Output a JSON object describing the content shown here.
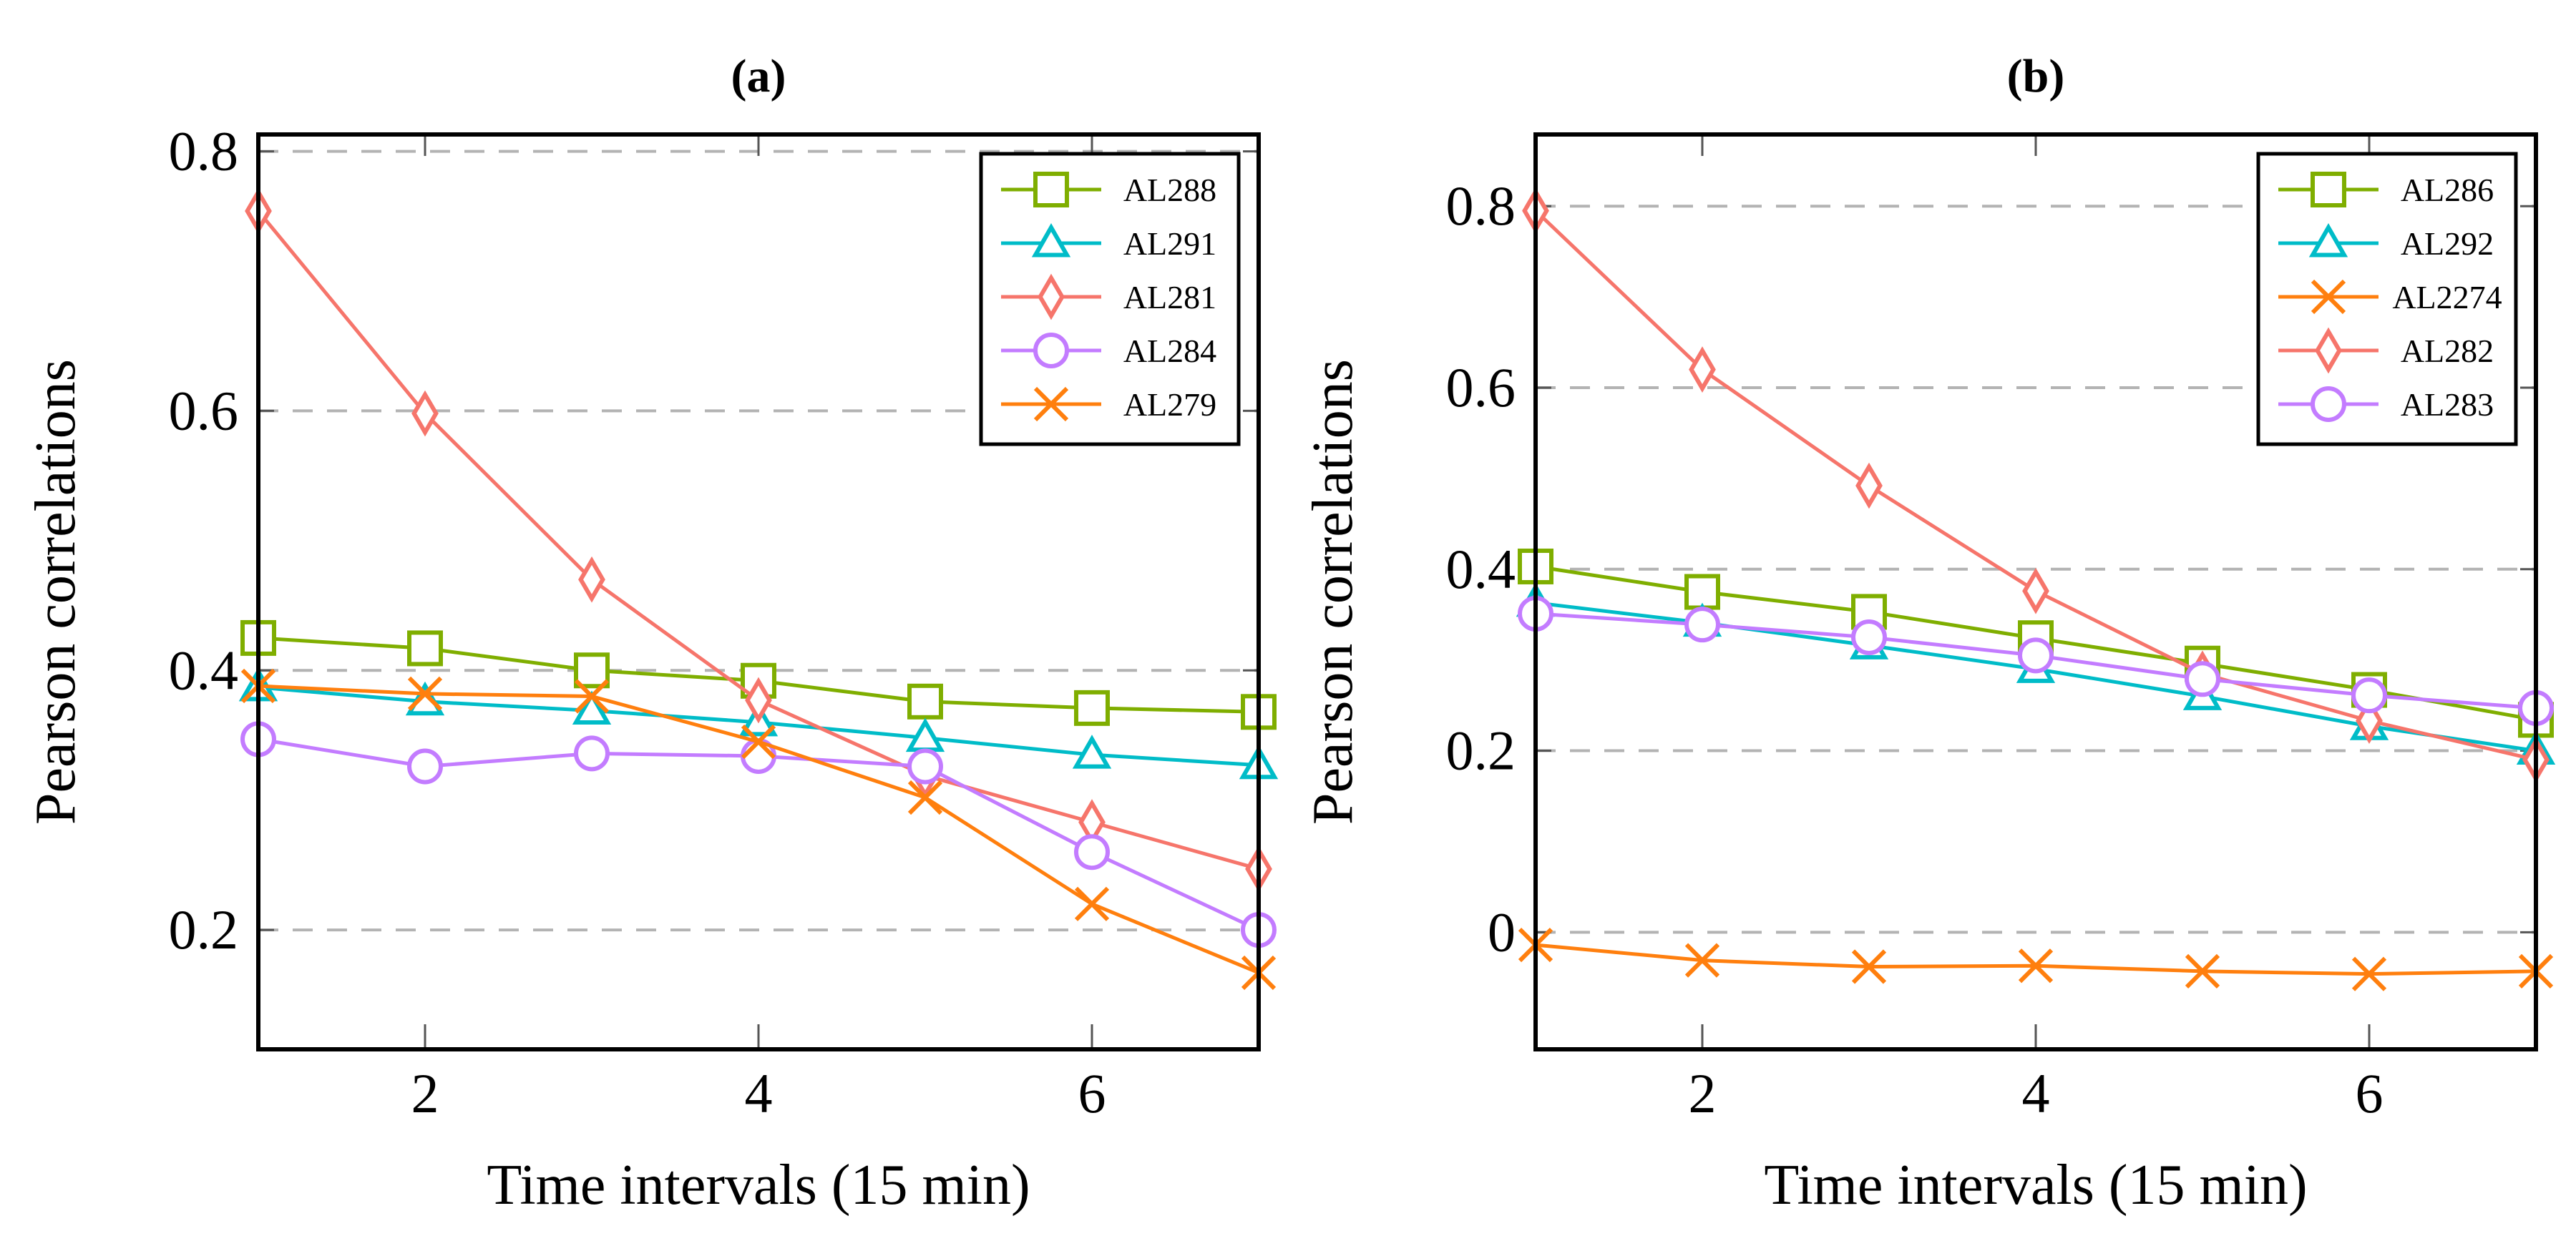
{
  "colors": {
    "green": "#7fae00",
    "cyan": "#00bcc8",
    "salmon": "#f6756b",
    "purple": "#c37cff",
    "orange": "#ff7f0e"
  },
  "chart_data": [
    {
      "type": "line",
      "title": "(a)",
      "title_bold": "a",
      "xlabel": "Time intervals (15 min)",
      "ylabel": "Pearson correlations",
      "x": [
        1,
        2,
        3,
        4,
        5,
        6,
        7
      ],
      "xlim": [
        1,
        7
      ],
      "ylim": [
        0.108,
        0.813
      ],
      "xticks": [
        2,
        4,
        6
      ],
      "yticks": [
        0.2,
        0.4,
        0.6,
        0.8
      ],
      "ytick_labels": [
        "0.2",
        "0.4",
        "0.6",
        "0.8"
      ],
      "grid": "horizontal-dashed",
      "legend_position": "top-right",
      "series": [
        {
          "name": "AL288",
          "color": "green",
          "marker": "square",
          "values": [
            0.425,
            0.417,
            0.4,
            0.392,
            0.376,
            0.371,
            0.368
          ]
        },
        {
          "name": "AL291",
          "color": "cyan",
          "marker": "triangle",
          "values": [
            0.387,
            0.376,
            0.369,
            0.36,
            0.348,
            0.335,
            0.327
          ]
        },
        {
          "name": "AL281",
          "color": "salmon",
          "marker": "diamond",
          "values": [
            0.754,
            0.598,
            0.47,
            0.377,
            0.319,
            0.283,
            0.247
          ]
        },
        {
          "name": "AL284",
          "color": "purple",
          "marker": "circle",
          "values": [
            0.347,
            0.326,
            0.336,
            0.334,
            0.326,
            0.26,
            0.2
          ]
        },
        {
          "name": "AL279",
          "color": "orange",
          "marker": "x",
          "values": [
            0.388,
            0.382,
            0.38,
            0.345,
            0.302,
            0.22,
            0.167
          ]
        }
      ]
    },
    {
      "type": "line",
      "title": "(b)",
      "title_bold": "b",
      "xlabel": "Time intervals (15 min)",
      "ylabel": "Pearson correlations",
      "x": [
        1,
        2,
        3,
        4,
        5,
        6,
        7
      ],
      "xlim": [
        1,
        7
      ],
      "ylim": [
        -0.129,
        0.879
      ],
      "xticks": [
        2,
        4,
        6
      ],
      "yticks": [
        0,
        0.2,
        0.4,
        0.6,
        0.8
      ],
      "ytick_labels": [
        "0",
        "0.2",
        "0.4",
        "0.6",
        "0.8"
      ],
      "grid": "horizontal-dashed",
      "legend_position": "top-right",
      "series": [
        {
          "name": "AL286",
          "color": "green",
          "marker": "square",
          "values": [
            0.403,
            0.375,
            0.353,
            0.324,
            0.296,
            0.267,
            0.234
          ]
        },
        {
          "name": "AL292",
          "color": "cyan",
          "marker": "triangle",
          "values": [
            0.363,
            0.341,
            0.316,
            0.29,
            0.26,
            0.227,
            0.2
          ]
        },
        {
          "name": "AL2274",
          "color": "orange",
          "marker": "x",
          "values": [
            -0.014,
            -0.031,
            -0.038,
            -0.037,
            -0.043,
            -0.046,
            -0.043
          ]
        },
        {
          "name": "AL282",
          "color": "salmon",
          "marker": "diamond",
          "values": [
            0.795,
            0.62,
            0.492,
            0.376,
            0.285,
            0.233,
            0.19
          ]
        },
        {
          "name": "AL283",
          "color": "purple",
          "marker": "circle",
          "values": [
            0.351,
            0.339,
            0.325,
            0.305,
            0.279,
            0.261,
            0.247
          ]
        }
      ]
    }
  ]
}
